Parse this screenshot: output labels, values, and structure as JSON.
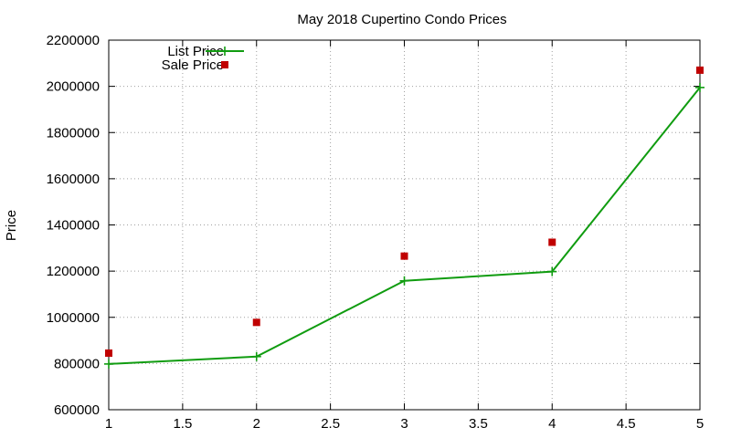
{
  "chart_data": {
    "type": "line",
    "title": "May 2018 Cupertino Condo Prices",
    "xlabel": "",
    "ylabel": "Price",
    "xlim": [
      1,
      5
    ],
    "ylim": [
      600000,
      2200000
    ],
    "x_ticks": [
      "1",
      "1.5",
      "2",
      "2.5",
      "3",
      "3.5",
      "4",
      "4.5",
      "5"
    ],
    "y_ticks": [
      "600000",
      "800000",
      "1000000",
      "1200000",
      "1400000",
      "1600000",
      "1800000",
      "2000000",
      "2200000"
    ],
    "grid": true,
    "legend_position": "top-left",
    "series": [
      {
        "name": "List Price",
        "style": "line+points",
        "color": "#109c10",
        "x": [
          1,
          2,
          3,
          4,
          5
        ],
        "y": [
          798000,
          830000,
          1158000,
          1198000,
          1995000
        ]
      },
      {
        "name": "Sale Price",
        "style": "points",
        "color": "#c00000",
        "x": [
          1,
          2,
          3,
          4,
          5
        ],
        "y": [
          845000,
          978000,
          1265000,
          1325000,
          2070000
        ]
      }
    ]
  }
}
